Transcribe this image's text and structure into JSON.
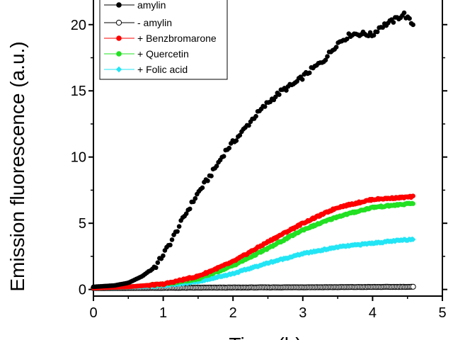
{
  "chart_data": {
    "type": "scatter",
    "title": "",
    "xlabel": "Time (h)",
    "ylabel": "Emission fluorescence (a.u.)",
    "xlim": [
      0,
      5
    ],
    "ylim": [
      -0.5,
      24
    ],
    "x_ticks": [
      0,
      1,
      2,
      3,
      4,
      5
    ],
    "y_ticks": [
      0,
      5,
      10,
      15,
      20
    ],
    "x_tick_labels": [
      "0",
      "1",
      "2",
      "3",
      "4",
      "5"
    ],
    "y_tick_labels": [
      "0",
      "5",
      "10",
      "15",
      "20"
    ],
    "grid": false,
    "legend_position": "top-left",
    "series": [
      {
        "name": "amylin",
        "color": "#000000",
        "marker": "filled-circle",
        "x_start": 0.0,
        "x_end": 4.58,
        "keypoints": [
          [
            0.0,
            0.2
          ],
          [
            0.3,
            0.3
          ],
          [
            0.5,
            0.5
          ],
          [
            0.7,
            1.0
          ],
          [
            0.9,
            1.8
          ],
          [
            1.1,
            3.5
          ],
          [
            1.3,
            5.5
          ],
          [
            1.5,
            7.3
          ],
          [
            1.7,
            8.8
          ],
          [
            1.9,
            10.5
          ],
          [
            2.1,
            11.7
          ],
          [
            2.3,
            13.0
          ],
          [
            2.5,
            14.1
          ],
          [
            2.7,
            15.0
          ],
          [
            2.9,
            15.6
          ],
          [
            3.1,
            16.5
          ],
          [
            3.3,
            17.3
          ],
          [
            3.5,
            18.6
          ],
          [
            3.7,
            19.3
          ],
          [
            3.9,
            19.3
          ],
          [
            4.0,
            19.2
          ],
          [
            4.1,
            19.8
          ],
          [
            4.3,
            20.3
          ],
          [
            4.45,
            20.8
          ],
          [
            4.58,
            20.0
          ]
        ]
      },
      {
        "name": "- amylin",
        "color": "#000000",
        "marker": "open-circle",
        "x_start": 0.0,
        "x_end": 4.58,
        "keypoints": [
          [
            0.0,
            0.1
          ],
          [
            4.58,
            0.2
          ]
        ]
      },
      {
        "name": "+ Benzbromarone",
        "color": "#ff0000",
        "marker": "filled-circle",
        "x_start": 0.0,
        "x_end": 4.58,
        "keypoints": [
          [
            0.0,
            0.1
          ],
          [
            0.5,
            0.2
          ],
          [
            1.0,
            0.4
          ],
          [
            1.5,
            1.0
          ],
          [
            2.0,
            2.1
          ],
          [
            2.5,
            3.6
          ],
          [
            3.0,
            5.0
          ],
          [
            3.5,
            6.2
          ],
          [
            4.0,
            6.8
          ],
          [
            4.58,
            7.0
          ]
        ]
      },
      {
        "name": "+ Quercetin",
        "color": "#22e022",
        "marker": "filled-circle",
        "x_start": 0.0,
        "x_end": 4.58,
        "keypoints": [
          [
            0.0,
            0.1
          ],
          [
            0.5,
            0.2
          ],
          [
            1.0,
            0.4
          ],
          [
            1.5,
            0.8
          ],
          [
            2.0,
            1.8
          ],
          [
            2.5,
            3.1
          ],
          [
            3.0,
            4.5
          ],
          [
            3.5,
            5.5
          ],
          [
            4.0,
            6.2
          ],
          [
            4.58,
            6.5
          ]
        ]
      },
      {
        "name": "+ Folic acid",
        "color": "#22e5f5",
        "marker": "filled-diamond",
        "x_start": 0.0,
        "x_end": 4.58,
        "keypoints": [
          [
            0.0,
            0.1
          ],
          [
            0.5,
            0.2
          ],
          [
            1.0,
            0.3
          ],
          [
            1.5,
            0.6
          ],
          [
            2.0,
            1.2
          ],
          [
            2.5,
            2.0
          ],
          [
            3.0,
            2.7
          ],
          [
            3.5,
            3.2
          ],
          [
            4.0,
            3.5
          ],
          [
            4.58,
            3.8
          ]
        ]
      }
    ]
  }
}
